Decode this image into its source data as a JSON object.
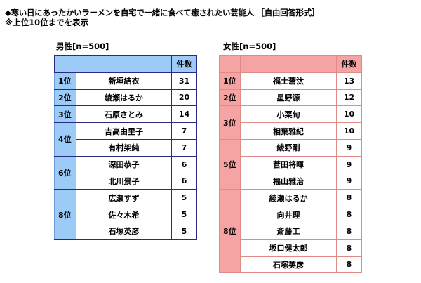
{
  "title": "◆寒い日にあったかいラーメンを自宅で一緒に食べて癒されたい芸能人 ［自由回答形式］",
  "subtitle": "※上位10位までを表示",
  "colors": {
    "male": "#9dcbf7",
    "female": "#f6a3a3"
  },
  "chart_data": [
    {
      "type": "table",
      "title": "男性[n=500]",
      "columns": [
        "",
        "",
        "件数"
      ],
      "groups": [
        {
          "rank": "1位",
          "rows": [
            {
              "name": "新垣結衣",
              "count": 31
            }
          ]
        },
        {
          "rank": "2位",
          "rows": [
            {
              "name": "綾瀬はるか",
              "count": 20
            }
          ]
        },
        {
          "rank": "3位",
          "rows": [
            {
              "name": "石原さとみ",
              "count": 14
            }
          ]
        },
        {
          "rank": "4位",
          "rows": [
            {
              "name": "吉高由里子",
              "count": 7
            },
            {
              "name": "有村架純",
              "count": 7
            }
          ]
        },
        {
          "rank": "6位",
          "rows": [
            {
              "name": "深田恭子",
              "count": 6
            },
            {
              "name": "北川景子",
              "count": 6
            }
          ]
        },
        {
          "rank": "8位",
          "rows": [
            {
              "name": "広瀬すず",
              "count": 5
            },
            {
              "name": "佐々木希",
              "count": 5
            },
            {
              "name": "石塚英彦",
              "count": 5
            }
          ]
        }
      ]
    },
    {
      "type": "table",
      "title": "女性[n=500]",
      "columns": [
        "",
        "",
        "件数"
      ],
      "groups": [
        {
          "rank": "1位",
          "rows": [
            {
              "name": "福士蒼汰",
              "count": 13
            }
          ]
        },
        {
          "rank": "2位",
          "rows": [
            {
              "name": "星野源",
              "count": 12
            }
          ]
        },
        {
          "rank": "3位",
          "rows": [
            {
              "name": "小栗旬",
              "count": 10
            },
            {
              "name": "相葉雅紀",
              "count": 10
            }
          ]
        },
        {
          "rank": "5位",
          "rows": [
            {
              "name": "綾野剛",
              "count": 9
            },
            {
              "name": "菅田将暉",
              "count": 9
            },
            {
              "name": "福山雅治",
              "count": 9
            }
          ]
        },
        {
          "rank": "8位",
          "rows": [
            {
              "name": "綾瀬はるか",
              "count": 8
            },
            {
              "name": "向井理",
              "count": 8
            },
            {
              "name": "斎藤工",
              "count": 8
            },
            {
              "name": "坂口健太郎",
              "count": 8
            },
            {
              "name": "石塚英彦",
              "count": 8
            }
          ]
        }
      ]
    }
  ]
}
